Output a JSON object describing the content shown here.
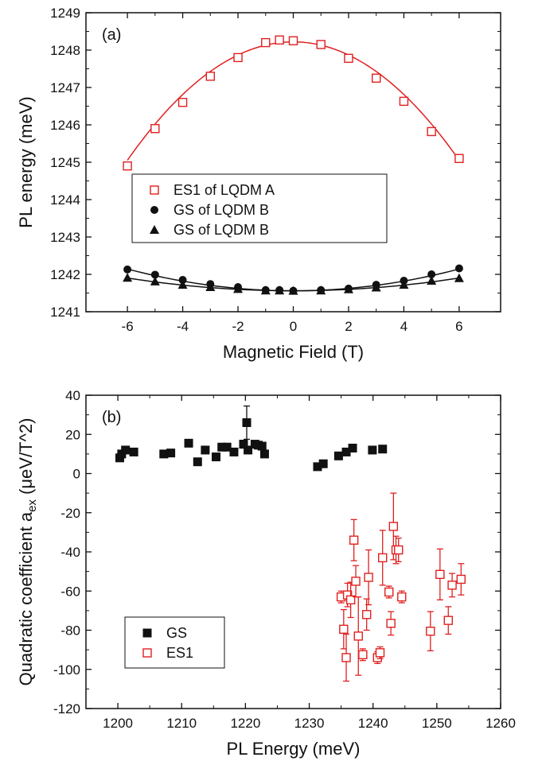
{
  "chart_data": [
    {
      "type": "scatter",
      "panel_label": "(a)",
      "xlabel": "Magnetic Field (T)",
      "ylabel": "PL energy (meV)",
      "xlim": [
        -7.5,
        7.5
      ],
      "ylim": [
        1241,
        1249
      ],
      "xticks": [
        "-6",
        "-4",
        "-2",
        "0",
        "2",
        "4",
        "6"
      ],
      "xtick_values": [
        -6,
        -4,
        -2,
        0,
        2,
        4,
        6
      ],
      "yticks": [
        "1241",
        "1242",
        "1243",
        "1244",
        "1245",
        "1246",
        "1247",
        "1248",
        "1249"
      ],
      "ytick_values": [
        1241,
        1242,
        1243,
        1244,
        1245,
        1246,
        1247,
        1248,
        1249
      ],
      "grid": false,
      "legend_position": "lower-left",
      "series": [
        {
          "name": "ES1 of LQDM A",
          "color": "#e02020",
          "marker": "open-square",
          "x": [
            -6,
            -5,
            -4,
            -3,
            -2,
            -1,
            -0.5,
            0,
            1,
            2,
            3,
            4,
            5,
            6
          ],
          "y": [
            1244.9,
            1245.9,
            1246.6,
            1247.3,
            1247.8,
            1248.2,
            1248.27,
            1248.25,
            1248.15,
            1247.78,
            1247.25,
            1246.63,
            1245.82,
            1245.1
          ],
          "fit": {
            "type": "quadratic",
            "a": -0.088,
            "b": 0.0,
            "c": 1248.22
          }
        },
        {
          "name": "GS of LQDM B",
          "color": "#111111",
          "marker": "filled-circle",
          "x": [
            -6,
            -5,
            -4,
            -3,
            -2,
            -1,
            -0.5,
            0,
            1,
            2,
            3,
            4,
            5,
            6
          ],
          "y": [
            1242.13,
            1241.99,
            1241.85,
            1241.74,
            1241.66,
            1241.58,
            1241.58,
            1241.56,
            1241.58,
            1241.62,
            1241.72,
            1241.83,
            1242.0,
            1242.16
          ],
          "fit": {
            "type": "quadratic",
            "a": 0.0162,
            "b": 0.0,
            "c": 1241.56
          }
        },
        {
          "name": "GS of LQDM B",
          "color": "#111111",
          "marker": "filled-triangle",
          "x": [
            -6,
            -5,
            -4,
            -3,
            -2,
            -1,
            -0.5,
            0,
            1,
            2,
            3,
            4,
            5,
            6
          ],
          "y": [
            1241.91,
            1241.81,
            1241.72,
            1241.66,
            1241.61,
            1241.57,
            1241.57,
            1241.56,
            1241.57,
            1241.6,
            1241.65,
            1241.72,
            1241.83,
            1241.9
          ],
          "fit": {
            "type": "quadratic",
            "a": 0.0095,
            "b": 0.0,
            "c": 1241.56
          }
        }
      ]
    },
    {
      "type": "scatter",
      "panel_label": "(b)",
      "xlabel": "PL Energy (meV)",
      "ylabel": "Quadratic coefficient aex (μeV/T^2)",
      "ylabel_main": "Quadratic coefficient a",
      "ylabel_sub": "ex",
      "ylabel_unit": " (μeV/T^2)",
      "xlim": [
        1195,
        1260
      ],
      "ylim": [
        -120,
        40
      ],
      "xticks": [
        "1200",
        "1210",
        "1220",
        "1230",
        "1240",
        "1250",
        "1260"
      ],
      "xtick_values": [
        1200,
        1210,
        1220,
        1230,
        1240,
        1250,
        1260
      ],
      "yticks": [
        "-120",
        "-100",
        "-80",
        "-60",
        "-40",
        "-20",
        "0",
        "20",
        "40"
      ],
      "ytick_values": [
        -120,
        -100,
        -80,
        -60,
        -40,
        -20,
        0,
        20,
        40
      ],
      "grid": false,
      "legend_position": "lower-left",
      "series": [
        {
          "name": "GS",
          "color": "#111111",
          "marker": "filled-square",
          "x": [
            1200.3,
            1200.6,
            1201.2,
            1202.5,
            1207.2,
            1208.3,
            1211.1,
            1212.5,
            1213.7,
            1215.4,
            1216.3,
            1217.1,
            1218.2,
            1219.7,
            1220.2,
            1220.4,
            1221.5,
            1222.0,
            1222.6,
            1223.0,
            1231.3,
            1232.2,
            1234.6,
            1235.8,
            1236.8,
            1239.9,
            1241.5
          ],
          "y": [
            8,
            10,
            12,
            11,
            10,
            10.5,
            15.5,
            6,
            12,
            8.5,
            13.5,
            13.5,
            11,
            15,
            26,
            12,
            15,
            14.5,
            14,
            10,
            3.5,
            5,
            9,
            11,
            13,
            12,
            12.5
          ],
          "err": [
            0,
            0,
            0,
            0,
            0,
            0,
            0,
            0,
            0,
            0,
            0,
            0,
            0,
            2,
            8.5,
            0,
            0,
            0,
            0,
            0,
            0,
            0,
            0,
            0,
            0,
            0,
            0
          ]
        },
        {
          "name": "ES1",
          "color": "#e02020",
          "marker": "open-square",
          "x": [
            1235.0,
            1235.4,
            1235.8,
            1236.0,
            1236.5,
            1237.0,
            1237.3,
            1237.7,
            1238.4,
            1239.0,
            1239.3,
            1240.7,
            1241.1,
            1241.5,
            1242.5,
            1242.8,
            1243.2,
            1243.6,
            1244.0,
            1244.5,
            1249.0,
            1250.5,
            1251.8,
            1252.4,
            1253.8
          ],
          "y": [
            -63,
            -79.5,
            -94,
            -62,
            -64.5,
            -34,
            -55,
            -83,
            -92.5,
            -72,
            -53,
            -94,
            -91.5,
            -43,
            -60.5,
            -76.5,
            -27,
            -39,
            -39,
            -63,
            -80.5,
            -51.5,
            -75,
            -57,
            -54
          ],
          "err": [
            3,
            10,
            12,
            6,
            9,
            10.5,
            8,
            20,
            3,
            8,
            14,
            3,
            3,
            14,
            3,
            6,
            17,
            7,
            6,
            3,
            10,
            13,
            7,
            6,
            8
          ]
        }
      ]
    }
  ]
}
